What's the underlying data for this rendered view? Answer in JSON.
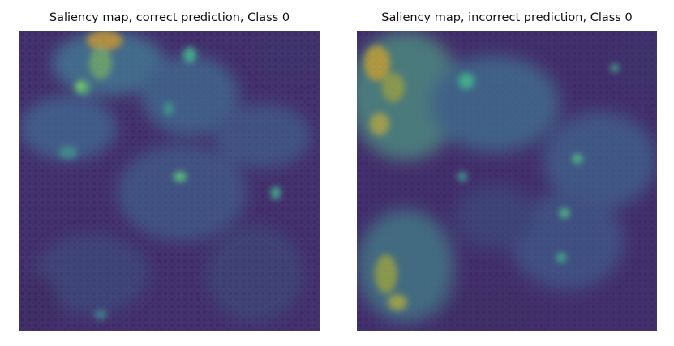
{
  "figures": [
    {
      "title": "Saliency map, correct prediction, Class 0",
      "colormap": "viridis"
    },
    {
      "title": "Saliency map, incorrect prediction, Class 0",
      "colormap": "viridis"
    }
  ],
  "colors": {
    "low": "#3b1f5c",
    "mid_low": "#404b7c",
    "mid": "#2f7f8a",
    "high": "#5ec962",
    "peak": "#b8a23a"
  }
}
